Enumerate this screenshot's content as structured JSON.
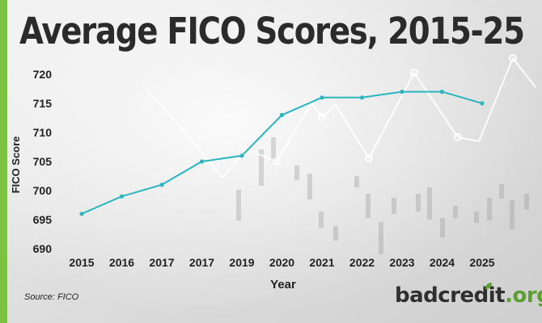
{
  "title": "Average FICO Scores, 2015-25",
  "source": "Source: FICO",
  "logo": {
    "part1": "badcredit",
    "part2": ".org"
  },
  "colors": {
    "accent": "#7cc142",
    "line": "#2bb5c0",
    "text": "#2b2b2b",
    "brand_green": "#5aa02c"
  },
  "chart_data": {
    "type": "line",
    "title": "Average FICO Scores, 2015-25",
    "xlabel": "Year",
    "ylabel": "FICO Score",
    "categories": [
      "2015",
      "2016",
      "2017",
      "2017",
      "2019",
      "2020",
      "2021",
      "2022",
      "2023",
      "2024",
      "2025"
    ],
    "series": [
      {
        "values": [
          696,
          699,
          701,
          705,
          706,
          713,
          716,
          716,
          717,
          717,
          715
        ]
      }
    ],
    "ylim": [
      690,
      720
    ],
    "yticks": [
      690,
      695,
      700,
      705,
      710,
      715,
      720
    ],
    "grid": false,
    "legend": "none"
  }
}
